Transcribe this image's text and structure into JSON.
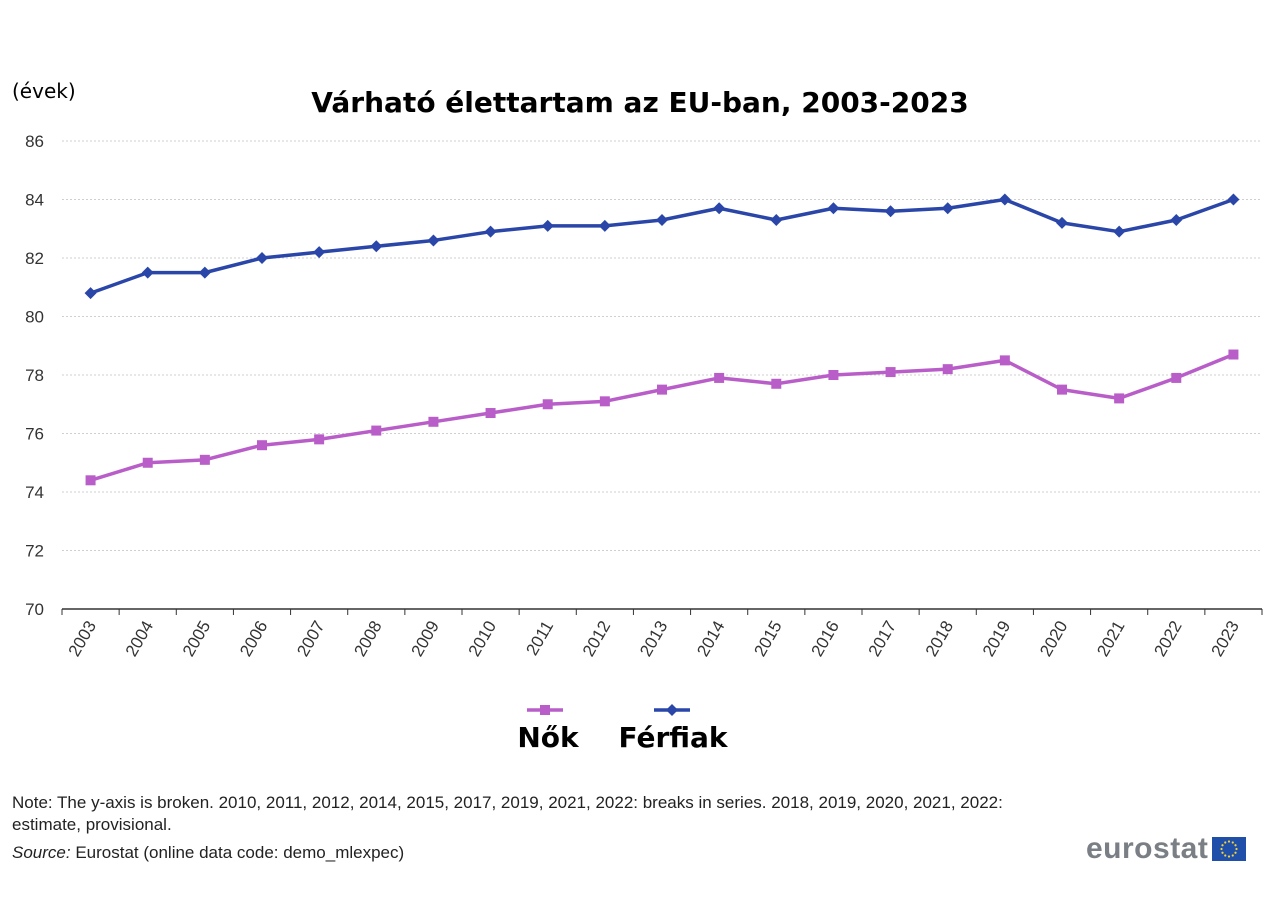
{
  "unit_label": "(évek)",
  "chart_data": {
    "type": "line",
    "title": "Várható élettartam az EU-ban, 2003-2023",
    "ylabel": "(évek)",
    "xlabel": "",
    "ylim": [
      70,
      86
    ],
    "yticks": [
      70,
      72,
      74,
      76,
      78,
      80,
      82,
      84,
      86
    ],
    "grid": true,
    "legend": "bottom-center",
    "categories": [
      "2003",
      "2004",
      "2005",
      "2006",
      "2007",
      "2008",
      "2009",
      "2010",
      "2011",
      "2012",
      "2013",
      "2014",
      "2015",
      "2016",
      "2017",
      "2018",
      "2019",
      "2020",
      "2021",
      "2022",
      "2023"
    ],
    "series": [
      {
        "name": "Nők",
        "color": "#b95ec8",
        "marker": "square",
        "values": [
          74.4,
          75.0,
          75.1,
          75.6,
          75.8,
          76.1,
          76.4,
          76.7,
          77.0,
          77.1,
          77.5,
          77.9,
          77.7,
          78.0,
          78.1,
          78.2,
          78.5,
          77.5,
          77.2,
          77.9,
          78.7
        ]
      },
      {
        "name": "Férfiak",
        "color": "#2a46a8",
        "marker": "diamond",
        "values": [
          80.8,
          81.5,
          81.5,
          82.0,
          82.2,
          82.4,
          82.6,
          82.9,
          83.1,
          83.1,
          83.3,
          83.7,
          83.3,
          83.7,
          83.6,
          83.7,
          84.0,
          83.2,
          82.9,
          83.3,
          84.0
        ]
      }
    ]
  },
  "footer": {
    "note": "Note: The y-axis is broken.  2010, 2011, 2012, 2014, 2015, 2017, 2019, 2021, 2022: breaks in series.  2018, 2019, 2020, 2021, 2022: estimate, provisional.",
    "source_label": "Source:",
    "source_text": " Eurostat (online data code: demo_mlexpec)",
    "logo_text": "eurostat"
  }
}
